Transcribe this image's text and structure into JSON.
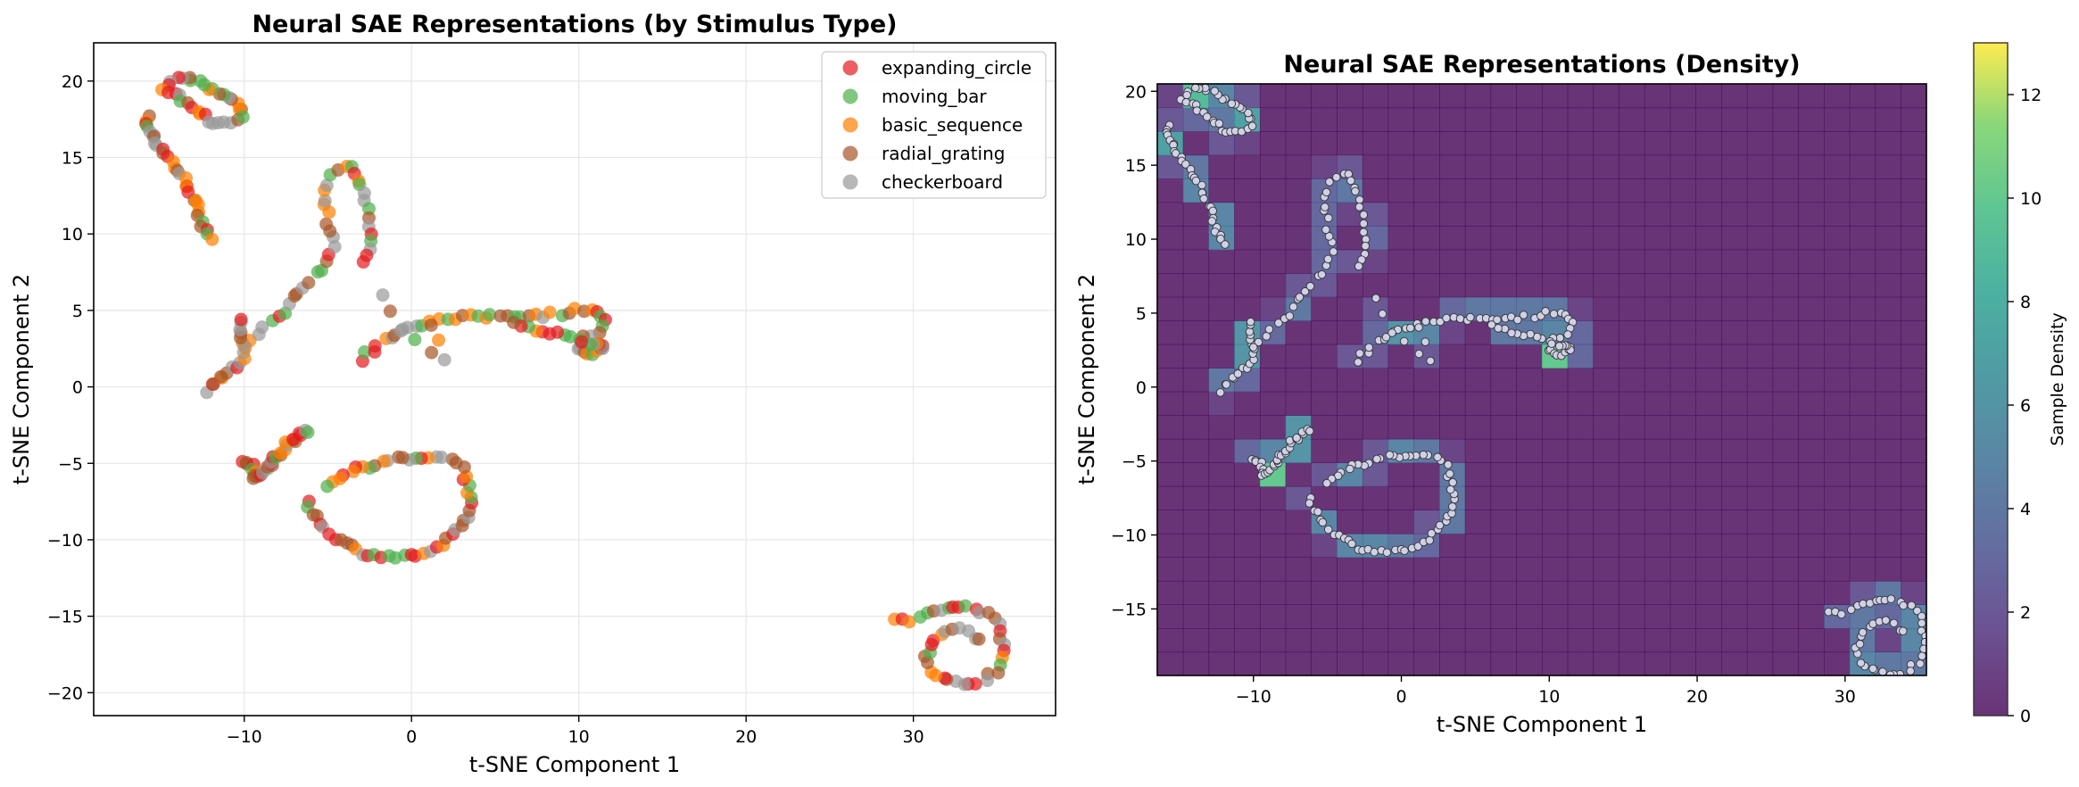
{
  "chart_data": [
    {
      "type": "scatter",
      "title": "Neural SAE Representations (by Stimulus Type)",
      "xlabel": "t-SNE Component 1",
      "ylabel": "t-SNE Component 2",
      "xlim": [
        -19,
        38.5
      ],
      "ylim": [
        -21.5,
        22.5
      ],
      "xticks": [
        -10,
        0,
        10,
        20,
        30
      ],
      "yticks": [
        -20,
        -15,
        -10,
        -5,
        0,
        5,
        10,
        15,
        20
      ],
      "grid": true,
      "legend_position": "top-right",
      "series": [
        {
          "name": "expanding_circle",
          "color": "#e41a1c"
        },
        {
          "name": "moving_bar",
          "color": "#4daf4a"
        },
        {
          "name": "basic_sequence",
          "color": "#ff7f00"
        },
        {
          "name": "radial_grating",
          "color": "#a65628"
        },
        {
          "name": "checkerboard",
          "color": "#999999"
        }
      ],
      "clusters": [
        {
          "name": "upper-left arc",
          "path": [
            [
              -10,
              18
            ],
            [
              -10.5,
              18.6
            ],
            [
              -11.5,
              19.2
            ],
            [
              -12.5,
              19.8
            ],
            [
              -13.5,
              20.2
            ],
            [
              -14.5,
              20
            ],
            [
              -14.8,
              19.5
            ],
            [
              -14,
              19
            ],
            [
              -13,
              18.3
            ],
            [
              -12.5,
              17.8
            ],
            [
              -12,
              17.3
            ],
            [
              -11,
              17.3
            ],
            [
              -10.2,
              17.6
            ]
          ],
          "n": 34
        },
        {
          "name": "upper-left descending arm",
          "path": [
            [
              -15.5,
              17.8
            ],
            [
              -16,
              17.2
            ],
            [
              -15.5,
              16.5
            ],
            [
              -15,
              15.5
            ],
            [
              -14.2,
              14.6
            ],
            [
              -13.5,
              13.5
            ],
            [
              -13,
              12
            ],
            [
              -12.5,
              10.5
            ],
            [
              -12,
              9.7
            ]
          ],
          "n": 30
        },
        {
          "name": "loop x=-4",
          "path": [
            [
              -10,
              2.8
            ],
            [
              -9,
              3.6
            ],
            [
              -8,
              4.6
            ],
            [
              -7,
              5.9
            ],
            [
              -6,
              7
            ],
            [
              -5,
              8
            ],
            [
              -4.7,
              9.5
            ],
            [
              -5,
              11
            ],
            [
              -5.2,
              12.5
            ],
            [
              -4.8,
              13.8
            ],
            [
              -4,
              14.6
            ],
            [
              -3.3,
              14.4
            ],
            [
              -3,
              13
            ],
            [
              -2.7,
              11.5
            ],
            [
              -2.4,
              10
            ],
            [
              -2.5,
              9
            ],
            [
              -3,
              8
            ]
          ],
          "n": 42
        },
        {
          "name": "left hook",
          "path": [
            [
              -12.2,
              -0.2
            ],
            [
              -11.5,
              0.5
            ],
            [
              -11,
              1.2
            ],
            [
              -10.2,
              1.5
            ],
            [
              -10,
              2.5
            ],
            [
              -10.1,
              3.5
            ],
            [
              -10.3,
              4.5
            ]
          ],
          "n": 18
        },
        {
          "name": "right branch",
          "path": [
            [
              -3,
              1.8
            ],
            [
              -2,
              2.8
            ],
            [
              -1,
              3.5
            ],
            [
              0,
              4
            ],
            [
              1,
              4.2
            ],
            [
              2,
              4.4
            ],
            [
              4,
              4.6
            ],
            [
              6,
              4.7
            ],
            [
              8,
              4.7
            ],
            [
              9.5,
              4.9
            ],
            [
              10.5,
              5.2
            ],
            [
              11.5,
              4.7
            ],
            [
              11.5,
              3.8
            ],
            [
              10,
              3
            ],
            [
              8,
              3.6
            ],
            [
              6,
              4.1
            ]
          ],
          "n": 50
        },
        {
          "name": "lower right cluster",
          "path": [
            [
              10,
              2.5
            ],
            [
              10.8,
              2.2
            ],
            [
              11.5,
              2.6
            ],
            [
              10.3,
              3
            ]
          ],
          "n": 14
        },
        {
          "name": "center small",
          "path": [
            [
              -1.8,
              6
            ],
            [
              -1.5,
              5.2
            ],
            [
              -0.5,
              3.5
            ],
            [
              0.8,
              2.3
            ],
            [
              1.5,
              2
            ],
            [
              2,
              1.7
            ],
            [
              1.2,
              4.2
            ]
          ],
          "n": 8
        },
        {
          "name": "left dense blob",
          "path": [
            [
              -10,
              -4.8
            ],
            [
              -9.4,
              -5.3
            ],
            [
              -9.3,
              -6
            ],
            [
              -8.8,
              -5.6
            ],
            [
              -8.2,
              -4.8
            ],
            [
              -7.6,
              -4
            ],
            [
              -7,
              -3.3
            ],
            [
              -6.3,
              -2.8
            ]
          ],
          "n": 30
        },
        {
          "name": "lower loop",
          "path": [
            [
              -6.3,
              -7.5
            ],
            [
              -5.5,
              -8.8
            ],
            [
              -4.5,
              -10
            ],
            [
              -3,
              -10.8
            ],
            [
              -1.5,
              -11.1
            ],
            [
              0,
              -11.1
            ],
            [
              1.5,
              -10.6
            ],
            [
              2.7,
              -9.5
            ],
            [
              3.5,
              -8
            ],
            [
              3.5,
              -6.8
            ],
            [
              3,
              -5.3
            ],
            [
              2,
              -4.7
            ],
            [
              1,
              -4.6
            ],
            [
              -0.5,
              -4.6
            ],
            [
              -2,
              -5
            ],
            [
              -3.5,
              -5.5
            ],
            [
              -4.5,
              -6
            ],
            [
              -5,
              -6.4
            ]
          ],
          "n": 60
        },
        {
          "name": "bottom right ring",
          "path": [
            [
              29,
              -15.2
            ],
            [
              30,
              -15.2
            ],
            [
              31,
              -14.8
            ],
            [
              32.5,
              -14.2
            ],
            [
              34,
              -14.5
            ],
            [
              35,
              -15.5
            ],
            [
              35.5,
              -17
            ],
            [
              35,
              -18.5
            ],
            [
              34,
              -19.3
            ],
            [
              33,
              -19.5
            ],
            [
              32,
              -19.2
            ],
            [
              31,
              -18.5
            ],
            [
              30.8,
              -17.5
            ],
            [
              31,
              -16.5
            ],
            [
              32.5,
              -15.8
            ],
            [
              34,
              -16.5
            ]
          ],
          "n": 45
        }
      ]
    },
    {
      "type": "heatmap",
      "title": "Neural SAE Representations (Density)",
      "xlabel": "t-SNE Component 1",
      "ylabel": "t-SNE Component 2",
      "xlim": [
        -16.5,
        35.5
      ],
      "ylim": [
        -19.5,
        20.5
      ],
      "xticks": [
        -10,
        0,
        10,
        20,
        30
      ],
      "yticks": [
        -15,
        -10,
        -5,
        0,
        5,
        10,
        15,
        20
      ],
      "colorbar": {
        "label": "Sample Density",
        "range": [
          0,
          13
        ],
        "ticks": [
          0,
          2,
          4,
          6,
          8,
          10,
          12
        ],
        "colormap": "viridis"
      },
      "point_color": "#d0d0e6",
      "point_edge": "#333333"
    }
  ]
}
